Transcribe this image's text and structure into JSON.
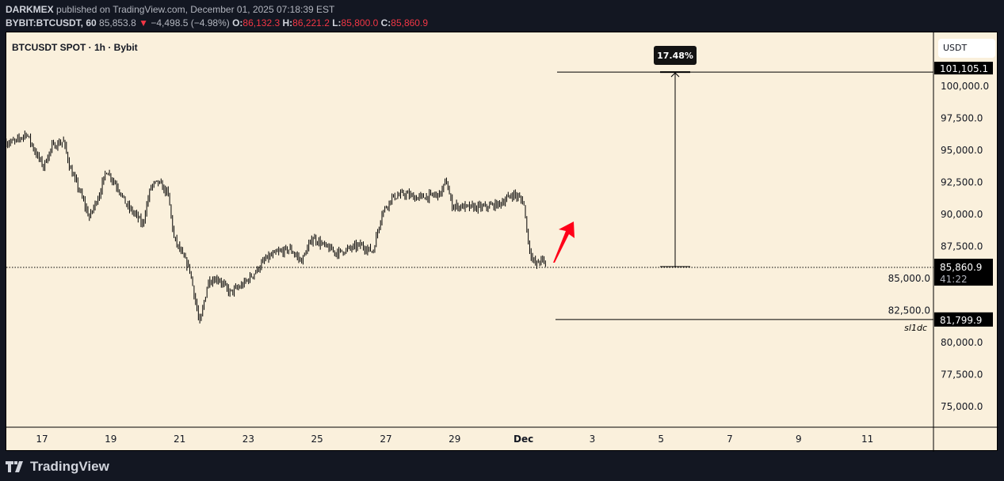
{
  "header": {
    "author": "DARKMEX",
    "published": "published on TradingView.com, December 01, 2025 07:18:39 EST",
    "symbol": "BYBIT:BTCUSDT, 60",
    "last": "85,853.8",
    "change": "−4,498.5 (−4.98%)",
    "o_label": "O:",
    "o": "86,132.3",
    "h_label": "H:",
    "h": "86,221.2",
    "l_label": "L:",
    "l": "85,800.0",
    "c_label": "C:",
    "c": "85,860.9"
  },
  "chart_title": "BTCUSDT SPOT · 1h · Bybit",
  "currency": "USDT",
  "footer": {
    "brand": "TradingView"
  },
  "colors": {
    "background": "#faf0dc",
    "candles": "#000000",
    "arrow": "#ff0018",
    "down": "#f23645"
  },
  "chart_data": {
    "type": "line",
    "style": "hourly bars (approximate closes)",
    "ylim": [
      73500,
      104000
    ],
    "yticks": [
      75000,
      77500,
      80000,
      82500,
      85000,
      87500,
      90000,
      92500,
      95000,
      97500,
      100000
    ],
    "ytick_labels": [
      "75,000.0",
      "77,500.0",
      "80,000.0",
      "82,500.0",
      "85,000.0",
      "87,500.0",
      "90,000.0",
      "92,500.0",
      "95,000.0",
      "97,500.0",
      "100,000.0"
    ],
    "xticks": [
      "2025-11-17",
      "2025-11-19",
      "2025-11-21",
      "2025-11-23",
      "2025-11-25",
      "2025-11-27",
      "2025-11-29",
      "2025-12-01",
      "2025-12-03",
      "2025-12-05",
      "2025-12-07",
      "2025-12-09",
      "2025-12-11"
    ],
    "xtick_labels": [
      "17",
      "19",
      "21",
      "23",
      "25",
      "27",
      "29",
      "Dec",
      "3",
      "5",
      "7",
      "9",
      "11"
    ],
    "series": [
      {
        "x": [
          "2025-11-15T23:00",
          "2025-11-16T06:00",
          "2025-11-16T13:00",
          "2025-11-16T20:00",
          "2025-11-17T01:00",
          "2025-11-17T07:00",
          "2025-11-17T15:00",
          "2025-11-17T20:00",
          "2025-11-18T02:00",
          "2025-11-18T09:00",
          "2025-11-18T16:00",
          "2025-11-18T21:00",
          "2025-11-19T06:00",
          "2025-11-19T11:00",
          "2025-11-19T19:00",
          "2025-11-19T22:00",
          "2025-11-20T04:00",
          "2025-11-20T09:00",
          "2025-11-20T16:00",
          "2025-11-20T20:00",
          "2025-11-21T01:00",
          "2025-11-21T07:00",
          "2025-11-21T12:00",
          "2025-11-21T14:00",
          "2025-11-21T20:00",
          "2025-11-22T03:00",
          "2025-11-22T11:00",
          "2025-11-22T19:00",
          "2025-11-23T04:00",
          "2025-11-23T12:00",
          "2025-11-23T20:00",
          "2025-11-24T05:00",
          "2025-11-24T13:00",
          "2025-11-24T21:00",
          "2025-11-25T06:00",
          "2025-11-25T14:00",
          "2025-11-25T22:00",
          "2025-11-26T06:00",
          "2025-11-26T15:00",
          "2025-11-26T21:00",
          "2025-11-27T04:00",
          "2025-11-27T13:00",
          "2025-11-27T21:00",
          "2025-11-28T05:00",
          "2025-11-28T14:00",
          "2025-11-28T18:00",
          "2025-11-28T22:00",
          "2025-11-29T09:00",
          "2025-11-29T20:00",
          "2025-11-30T07:00",
          "2025-11-30T17:00",
          "2025-12-01T00:00",
          "2025-12-01T04:00",
          "2025-12-01T08:00",
          "2025-12-01T13:00",
          "2025-12-01T16:00"
        ],
        "y": [
          95600,
          95700,
          96350,
          94700,
          93750,
          95300,
          95700,
          93450,
          91900,
          89750,
          91600,
          93450,
          91900,
          90700,
          89750,
          89150,
          92200,
          92500,
          91600,
          88200,
          87000,
          85750,
          82650,
          81400,
          84800,
          85000,
          83900,
          84400,
          85400,
          86500,
          87000,
          87300,
          86350,
          88200,
          87450,
          87000,
          87300,
          87600,
          87100,
          90050,
          91300,
          91600,
          91300,
          91400,
          91600,
          92650,
          90700,
          90550,
          90550,
          90800,
          91600,
          91000,
          87300,
          86050,
          86500,
          85860
        ]
      }
    ],
    "current_price": {
      "value": 85860.9,
      "label": "85,860.9",
      "countdown": "41:22"
    },
    "annotations": {
      "target": {
        "value": 101105.1,
        "label": "101,105.1"
      },
      "measure_percent": "17.48%",
      "stop_line": {
        "value": 81799.9,
        "label": "81,799.9",
        "text": "sl1dc"
      },
      "arrow": "up-right red arrow"
    }
  }
}
